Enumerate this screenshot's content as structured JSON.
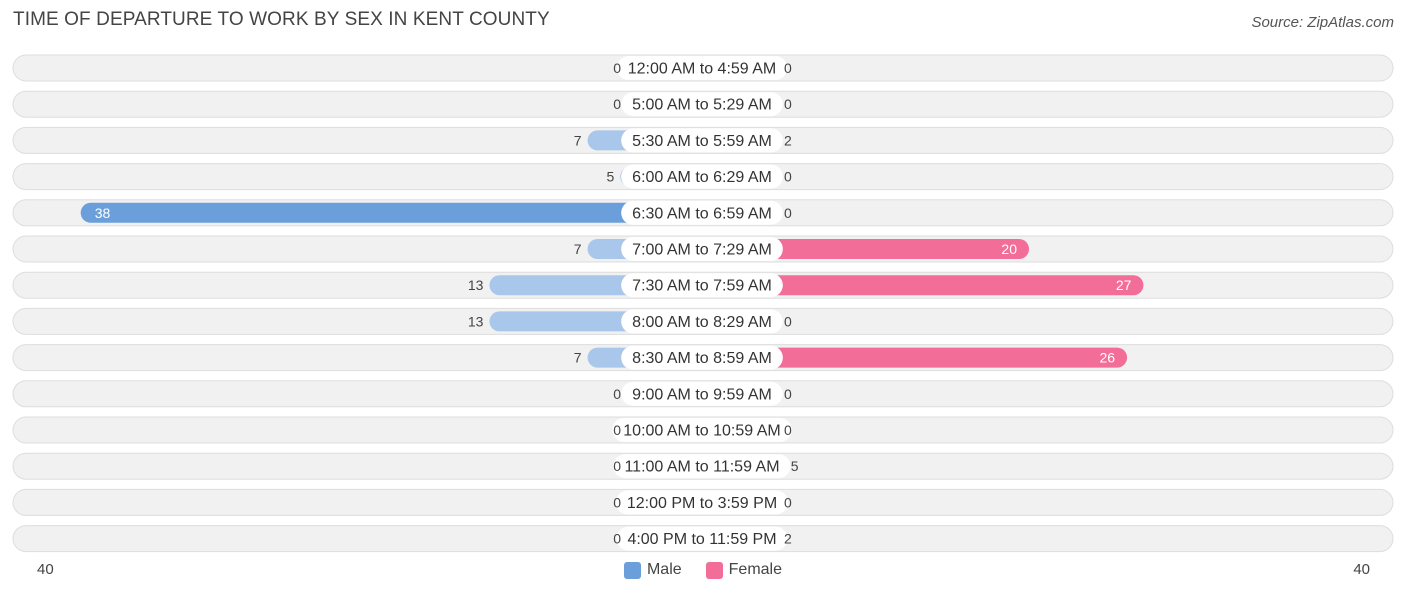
{
  "header": {
    "title": "TIME OF DEPARTURE TO WORK BY SEX IN KENT COUNTY",
    "source": "Source: ZipAtlas.com"
  },
  "axis": {
    "left_label": "40",
    "right_label": "40"
  },
  "legend": {
    "male": "Male",
    "female": "Female"
  },
  "colors": {
    "male_strong": "#6a9fdc",
    "male_light": "#a9c7ea",
    "female_strong": "#f26d98",
    "female_light": "#f7a8c3",
    "row_bg": "#f1f1f1",
    "row_border": "#dddddd"
  },
  "chart_data": {
    "type": "bar",
    "orientation": "horizontal-diverging",
    "title": "TIME OF DEPARTURE TO WORK BY SEX IN KENT COUNTY",
    "xlim": [
      -40,
      40
    ],
    "legend_position": "bottom-center",
    "categories": [
      "12:00 AM to 4:59 AM",
      "5:00 AM to 5:29 AM",
      "5:30 AM to 5:59 AM",
      "6:00 AM to 6:29 AM",
      "6:30 AM to 6:59 AM",
      "7:00 AM to 7:29 AM",
      "7:30 AM to 7:59 AM",
      "8:00 AM to 8:29 AM",
      "8:30 AM to 8:59 AM",
      "9:00 AM to 9:59 AM",
      "10:00 AM to 10:59 AM",
      "11:00 AM to 11:59 AM",
      "12:00 PM to 3:59 PM",
      "4:00 PM to 11:59 PM"
    ],
    "series": [
      {
        "name": "Male",
        "values": [
          0,
          0,
          7,
          5,
          38,
          7,
          13,
          13,
          7,
          0,
          0,
          0,
          0,
          0
        ]
      },
      {
        "name": "Female",
        "values": [
          0,
          0,
          2,
          0,
          0,
          20,
          27,
          0,
          26,
          0,
          0,
          5,
          0,
          2
        ]
      }
    ]
  }
}
